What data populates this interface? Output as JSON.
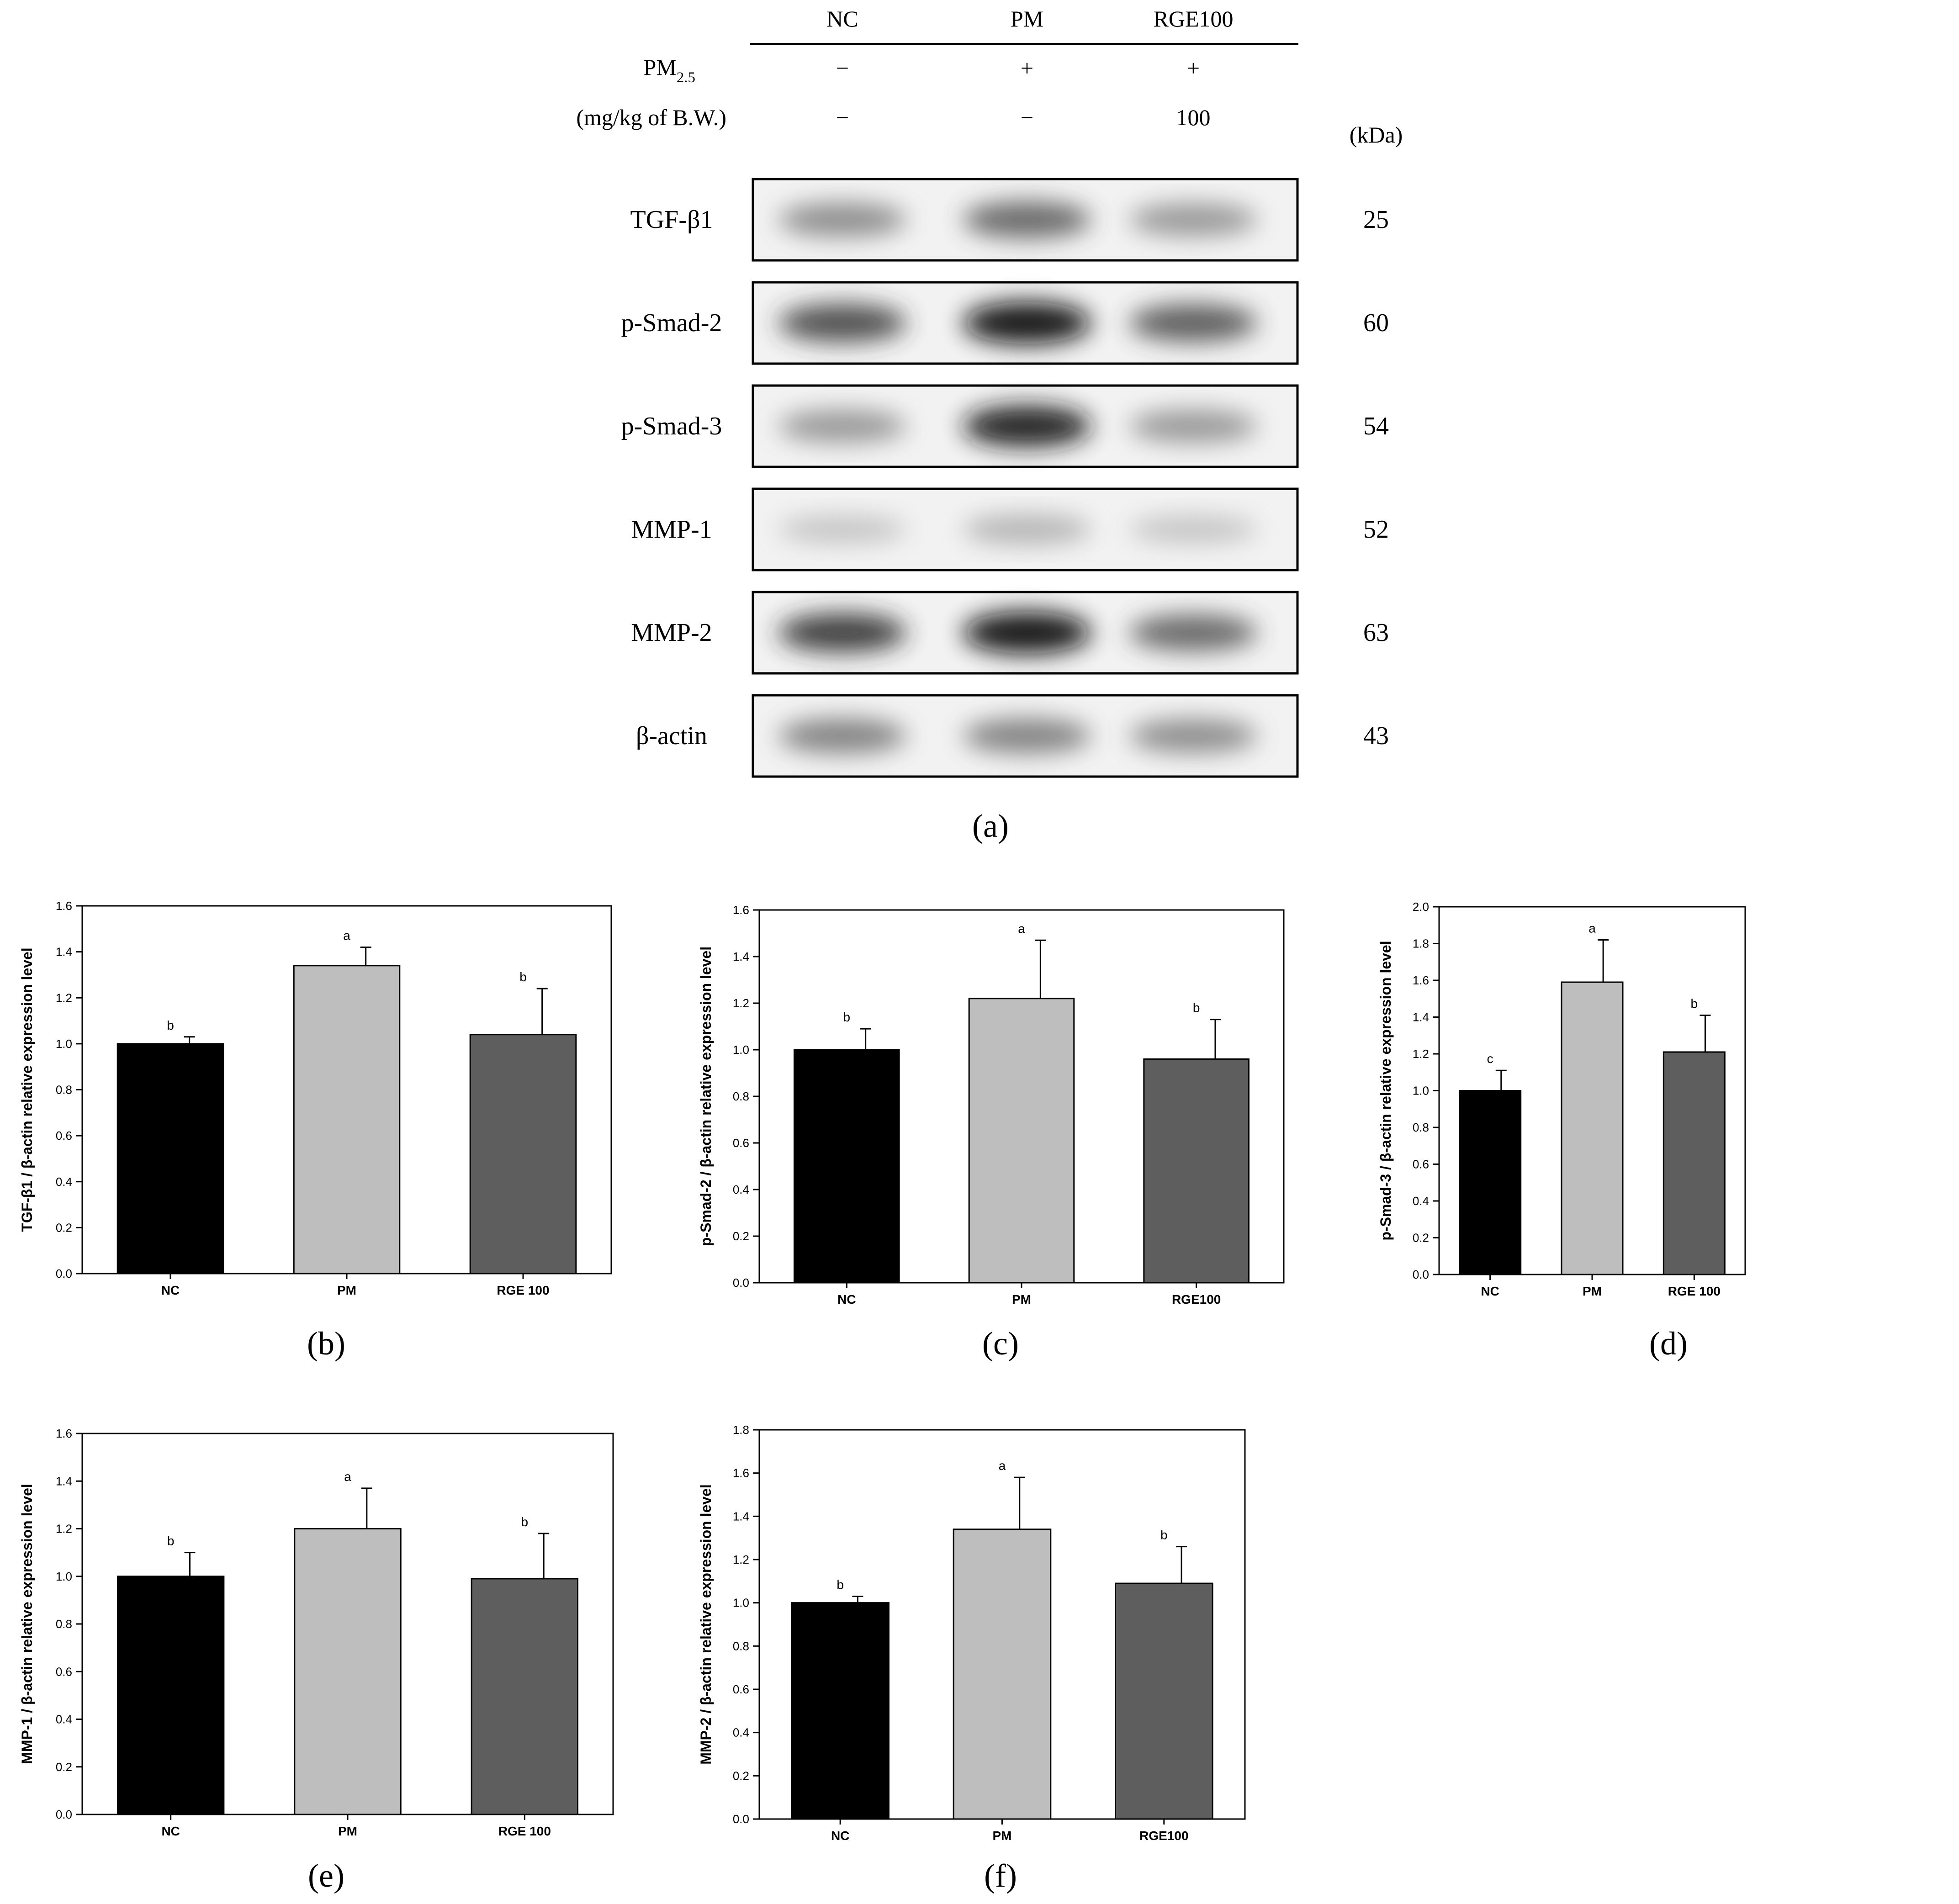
{
  "blot": {
    "column_headers": [
      "NC",
      "PM",
      "RGE100"
    ],
    "treatment_label": "PM",
    "treatment_subscript": "2.5",
    "treatment_values": [
      "−",
      "+",
      "+"
    ],
    "dose_label": "(mg/kg of B.W.)",
    "dose_values": [
      "−",
      "−",
      "100"
    ],
    "kda_header": "(kDa)",
    "rows": [
      {
        "label": "TGF-β1",
        "kda": "25",
        "intensities": [
          0.55,
          0.7,
          0.5
        ]
      },
      {
        "label": "p-Smad-2",
        "kda": "60",
        "intensities": [
          0.8,
          1.0,
          0.75
        ]
      },
      {
        "label": "p-Smad-3",
        "kda": "54",
        "intensities": [
          0.5,
          0.95,
          0.5
        ]
      },
      {
        "label": "MMP-1",
        "kda": "52",
        "intensities": [
          0.25,
          0.35,
          0.25
        ]
      },
      {
        "label": "MMP-2",
        "kda": "63",
        "intensities": [
          0.85,
          1.0,
          0.7
        ]
      },
      {
        "label": "β-actin",
        "kda": "43",
        "intensities": [
          0.6,
          0.6,
          0.55
        ]
      }
    ],
    "panel_label": "(a)"
  },
  "chart_data": [
    {
      "type": "bar",
      "panel_label": "(b)",
      "categories": [
        "NC",
        "PM",
        "RGE 100"
      ],
      "values": [
        1.0,
        1.34,
        1.04
      ],
      "errors": [
        0.03,
        0.08,
        0.2
      ],
      "letters": [
        "b",
        "a",
        "b"
      ],
      "ylabel": "TGF-β1 / β-actin relative expression level",
      "ylim": [
        0,
        1.6
      ],
      "yticks": [
        "0.0",
        "0.2",
        "0.4",
        "0.6",
        "0.8",
        "1.0",
        "1.2",
        "1.4",
        "1.6"
      ],
      "colors": [
        "#000000",
        "#bebebe",
        "#5e5e5e"
      ]
    },
    {
      "type": "bar",
      "panel_label": "(c)",
      "categories": [
        "NC",
        "PM",
        "RGE100"
      ],
      "values": [
        1.0,
        1.22,
        0.96
      ],
      "errors": [
        0.09,
        0.25,
        0.17
      ],
      "letters": [
        "b",
        "a",
        "b"
      ],
      "ylabel": "p-Smad-2 / β-actin relative expression level",
      "ylim": [
        0,
        1.6
      ],
      "yticks": [
        "0.0",
        "0.2",
        "0.4",
        "0.6",
        "0.8",
        "1.0",
        "1.2",
        "1.4",
        "1.6"
      ],
      "colors": [
        "#000000",
        "#bebebe",
        "#5e5e5e"
      ]
    },
    {
      "type": "bar",
      "panel_label": "(d)",
      "categories": [
        "NC",
        "PM",
        "RGE 100"
      ],
      "values": [
        1.0,
        1.59,
        1.21
      ],
      "errors": [
        0.11,
        0.23,
        0.2
      ],
      "letters": [
        "c",
        "a",
        "b"
      ],
      "ylabel": "p-Smad-3 / β-actin relative expression level",
      "ylim": [
        0,
        2.0
      ],
      "yticks": [
        "0.0",
        "0.2",
        "0.4",
        "0.6",
        "0.8",
        "1.0",
        "1.2",
        "1.4",
        "1.6",
        "1.8",
        "2.0"
      ],
      "colors": [
        "#000000",
        "#bebebe",
        "#5e5e5e"
      ]
    },
    {
      "type": "bar",
      "panel_label": "(e)",
      "categories": [
        "NC",
        "PM",
        "RGE 100"
      ],
      "values": [
        1.0,
        1.2,
        0.99
      ],
      "errors": [
        0.1,
        0.17,
        0.19
      ],
      "letters": [
        "b",
        "a",
        "b"
      ],
      "ylabel": "MMP-1 / β-actin relative expression level",
      "ylim": [
        0,
        1.6
      ],
      "yticks": [
        "0.0",
        "0.2",
        "0.4",
        "0.6",
        "0.8",
        "1.0",
        "1.2",
        "1.4",
        "1.6"
      ],
      "colors": [
        "#000000",
        "#bebebe",
        "#5e5e5e"
      ]
    },
    {
      "type": "bar",
      "panel_label": "(f)",
      "categories": [
        "NC",
        "PM",
        "RGE100"
      ],
      "values": [
        1.0,
        1.34,
        1.09
      ],
      "errors": [
        0.03,
        0.24,
        0.17
      ],
      "letters": [
        "b",
        "a",
        "b"
      ],
      "ylabel": "MMP-2 / β-actin relative expression level",
      "ylim": [
        0,
        1.8
      ],
      "yticks": [
        "0.0",
        "0.2",
        "0.4",
        "0.6",
        "0.8",
        "1.0",
        "1.2",
        "1.4",
        "1.6",
        "1.8"
      ],
      "colors": [
        "#000000",
        "#bebebe",
        "#5e5e5e"
      ]
    }
  ]
}
